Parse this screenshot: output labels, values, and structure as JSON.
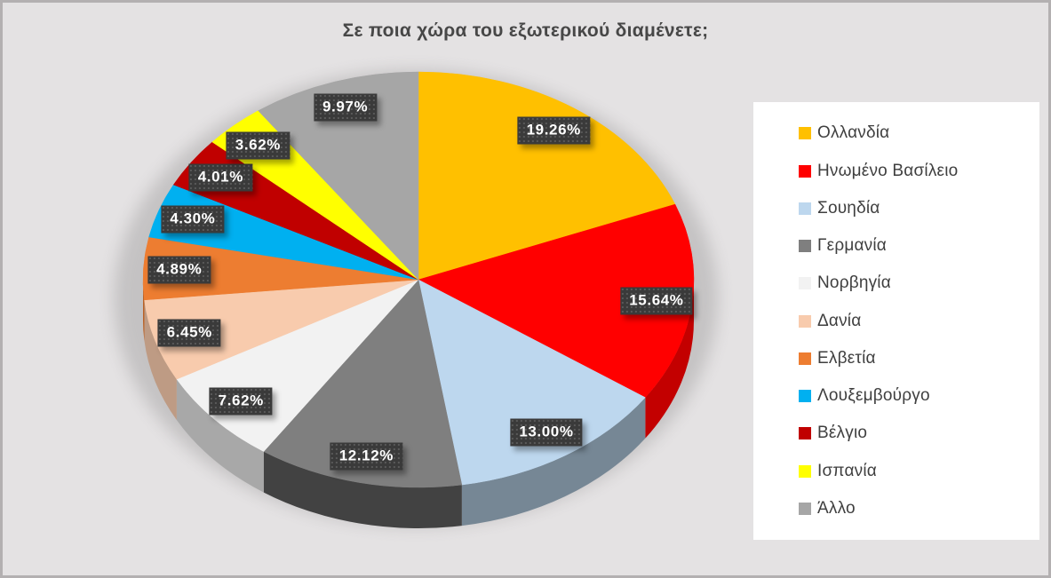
{
  "title": "Σε ποια χώρα του εξωτερικού διαμένετε;",
  "frame": {
    "background_color": "#e4e2e3",
    "border_color": "#b3b0b1",
    "legend_background": "#ffffff"
  },
  "chart_data": {
    "type": "pie",
    "style": "3d",
    "title": "Σε ποια χώρα του εξωτερικού διαμένετε;",
    "legend_position": "right",
    "start_angle_deg": 0,
    "direction": "clockwise",
    "data_label_style": {
      "bg": "#3a3a3a",
      "text_color": "#ffffff"
    },
    "slices": [
      {
        "label": "Ολλανδία",
        "value": 19.26,
        "display": "19.26%",
        "color": "#FFC000"
      },
      {
        "label": "Ηνωμένο Βασίλειο",
        "value": 15.64,
        "display": "15.64%",
        "color": "#FF0000"
      },
      {
        "label": "Σουηδία",
        "value": 13.0,
        "display": "13.00%",
        "color": "#BDD7EE"
      },
      {
        "label": "Γερμανία",
        "value": 12.12,
        "display": "12.12%",
        "color": "#7F7F7F"
      },
      {
        "label": "Νορβηγία",
        "value": 7.62,
        "display": "7.62%",
        "color": "#F2F2F2"
      },
      {
        "label": "Δανία",
        "value": 6.45,
        "display": "6.45%",
        "color": "#F8CBAD"
      },
      {
        "label": "Ελβετία",
        "value": 4.89,
        "display": "4.89%",
        "color": "#ED7D31"
      },
      {
        "label": "Λουξεμβούργο",
        "value": 4.3,
        "display": "4.30%",
        "color": "#00B0F0"
      },
      {
        "label": "Βέλγιο",
        "value": 4.01,
        "display": "4.01%",
        "color": "#C00000"
      },
      {
        "label": "Ισπανία",
        "value": 3.62,
        "display": "3.62%",
        "color": "#FFFF00"
      },
      {
        "label": "Άλλο",
        "value": 9.97,
        "display": "9.97%",
        "color": "#A6A6A6"
      }
    ]
  }
}
